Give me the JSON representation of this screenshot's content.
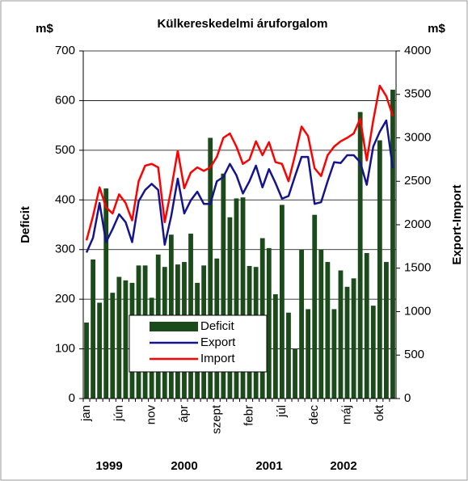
{
  "chart_data": {
    "type": "bar-line",
    "title": "Külkereskedelmi áruforgalom",
    "y_unit": "m$",
    "y2_unit": "m$",
    "ylabel": "Deficit",
    "y2label": "Export-Import",
    "categories": [
      "jan",
      null,
      null,
      null,
      null,
      "jún",
      null,
      null,
      null,
      null,
      "nov",
      null,
      null,
      null,
      null,
      "ápr",
      null,
      null,
      null,
      null,
      "szept",
      null,
      null,
      null,
      null,
      "febr",
      null,
      null,
      null,
      null,
      "júl",
      null,
      null,
      null,
      null,
      "dec",
      null,
      null,
      null,
      null,
      "máj",
      null,
      null,
      null,
      null,
      "okt",
      null,
      null
    ],
    "year_labels": [
      "1999",
      "2000",
      "2001",
      "2002"
    ],
    "series": [
      {
        "name": "Deficit",
        "color": "#1b4a1b",
        "kind": "bar",
        "axis": "y",
        "values": [
          153,
          280,
          193,
          423,
          213,
          245,
          238,
          233,
          268,
          268,
          203,
          290,
          265,
          330,
          270,
          275,
          332,
          233,
          268,
          525,
          282,
          453,
          365,
          403,
          405,
          267,
          265,
          323,
          303,
          210,
          390,
          173,
          100,
          300,
          180,
          370,
          300,
          275,
          180,
          258,
          225,
          242,
          577,
          293,
          187,
          520,
          275,
          622
        ]
      },
      {
        "name": "Export",
        "color": "#14148c",
        "kind": "line",
        "axis": "y2",
        "values": [
          1680,
          1850,
          2250,
          1800,
          1950,
          2120,
          2030,
          1800,
          2270,
          2400,
          2470,
          2400,
          1770,
          2100,
          2530,
          2130,
          2280,
          2380,
          2240,
          2240,
          2500,
          2550,
          2700,
          2570,
          2360,
          2500,
          2680,
          2430,
          2640,
          2480,
          2300,
          2330,
          2560,
          2780,
          2780,
          2240,
          2260,
          2500,
          2720,
          2710,
          2800,
          2800,
          2720,
          2460,
          2900,
          3070,
          3200,
          2650
        ]
      },
      {
        "name": "Import",
        "color": "#ff0000",
        "kind": "line",
        "axis": "y2",
        "values": [
          1820,
          2100,
          2430,
          2200,
          2130,
          2350,
          2250,
          2050,
          2500,
          2680,
          2700,
          2660,
          2030,
          2410,
          2850,
          2420,
          2600,
          2660,
          2620,
          2660,
          2780,
          3000,
          3050,
          2900,
          2700,
          2750,
          2960,
          2800,
          2950,
          2720,
          2700,
          2500,
          2800,
          3130,
          3020,
          2650,
          2560,
          2800,
          2900,
          2960,
          3000,
          3050,
          3220,
          2740,
          3200,
          3600,
          3480,
          3250
        ]
      }
    ],
    "ylim": [
      0,
      700
    ],
    "yticks": [
      0,
      100,
      200,
      300,
      400,
      500,
      600,
      700
    ],
    "y2lim": [
      0,
      4000
    ],
    "y2ticks": [
      0,
      500,
      1000,
      1500,
      2000,
      2500,
      3000,
      3500,
      4000
    ],
    "grid": true
  }
}
